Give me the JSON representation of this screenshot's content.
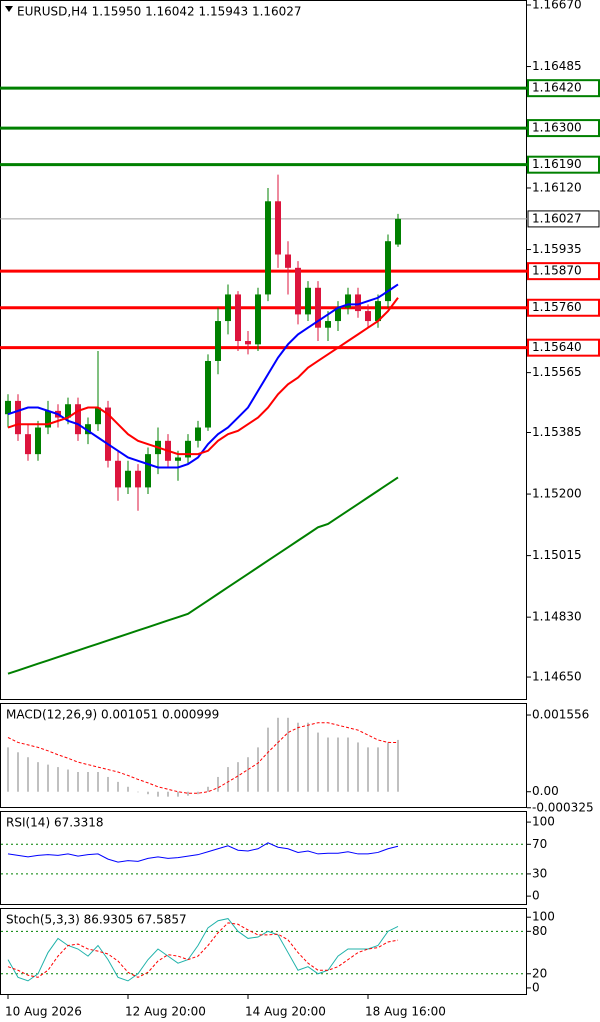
{
  "chart_data": [
    {
      "type": "candlestick",
      "title": "EURUSD,H4  1.15950 1.16042 1.15943 1.16027",
      "categories": [
        "10 Aug 2026",
        null,
        null,
        null,
        null,
        null,
        null,
        null,
        null,
        null,
        null,
        null,
        "12 Aug 20:00",
        null,
        null,
        null,
        null,
        null,
        null,
        null,
        null,
        null,
        null,
        null,
        "14 Aug 20:00",
        null,
        null,
        null,
        null,
        null,
        null,
        null,
        null,
        null,
        null,
        null,
        "18 Aug 16:00",
        null,
        null,
        null
      ],
      "open": [
        1.1544,
        1.1548,
        1.1538,
        1.1532,
        1.154,
        1.1545,
        1.1543,
        1.1547,
        1.1538,
        1.1541,
        1.1546,
        1.153,
        1.1522,
        1.1527,
        1.1522,
        1.1532,
        1.1536,
        1.153,
        1.1531,
        1.1536,
        1.154,
        1.156,
        1.1572,
        1.158,
        1.1566,
        1.1565,
        1.158,
        1.1608,
        1.1592,
        1.1588,
        1.1574,
        1.1582,
        1.157,
        1.1572,
        1.1576,
        1.158,
        1.1575,
        1.1572,
        1.1578,
        1.1595
      ],
      "high": [
        1.155,
        1.155,
        1.1541,
        1.1542,
        1.1548,
        1.1547,
        1.1549,
        1.1549,
        1.1543,
        1.1563,
        1.1548,
        1.1533,
        1.153,
        1.1529,
        1.1534,
        1.154,
        1.1538,
        1.1533,
        1.1538,
        1.1542,
        1.1562,
        1.1576,
        1.1583,
        1.1581,
        1.1569,
        1.1582,
        1.1612,
        1.1616,
        1.1596,
        1.159,
        1.1584,
        1.1584,
        1.1575,
        1.1578,
        1.1582,
        1.1582,
        1.1577,
        1.158,
        1.1598,
        1.16042
      ],
      "low": [
        1.154,
        1.1536,
        1.153,
        1.153,
        1.1538,
        1.154,
        1.1541,
        1.1536,
        1.1535,
        1.1539,
        1.1528,
        1.1518,
        1.152,
        1.1515,
        1.152,
        1.1526,
        1.1528,
        1.1524,
        1.1529,
        1.1534,
        1.1539,
        1.1556,
        1.1568,
        1.1563,
        1.1562,
        1.1563,
        1.1578,
        1.1588,
        1.158,
        1.1571,
        1.1572,
        1.1566,
        1.1566,
        1.1569,
        1.1574,
        1.1573,
        1.157,
        1.157,
        1.1576,
        1.15943
      ],
      "close": [
        1.1548,
        1.1538,
        1.1532,
        1.154,
        1.1545,
        1.1543,
        1.1547,
        1.1538,
        1.1541,
        1.1546,
        1.153,
        1.1522,
        1.1527,
        1.1522,
        1.1532,
        1.1536,
        1.153,
        1.1531,
        1.1536,
        1.154,
        1.156,
        1.1572,
        1.158,
        1.1566,
        1.1565,
        1.158,
        1.1608,
        1.1592,
        1.1588,
        1.1574,
        1.1582,
        1.157,
        1.1572,
        1.1576,
        1.158,
        1.1575,
        1.1572,
        1.1578,
        1.1596,
        1.16027
      ],
      "up_color": "#008000",
      "down_color": "#dc143c",
      "series": [
        {
          "color": "#0000ff",
          "values": [
            1.1544,
            1.1545,
            1.1546,
            1.1546,
            1.1545,
            1.1544,
            1.1542,
            1.1541,
            1.1539,
            1.1537,
            1.1535,
            1.1533,
            1.1531,
            1.153,
            1.1529,
            1.1528,
            1.1528,
            1.1528,
            1.1529,
            1.1531,
            1.1535,
            1.1538,
            1.154,
            1.1543,
            1.1546,
            1.1551,
            1.1556,
            1.1561,
            1.1565,
            1.1568,
            1.157,
            1.1572,
            1.1574,
            1.1576,
            1.1577,
            1.1577,
            1.1578,
            1.1579,
            1.1581,
            1.1583
          ]
        },
        {
          "color": "#ff0000",
          "values": [
            1.154,
            1.1541,
            1.1541,
            1.1541,
            1.1541,
            1.1542,
            1.1543,
            1.1545,
            1.1546,
            1.1546,
            1.1544,
            1.1541,
            1.1538,
            1.1536,
            1.1535,
            1.1534,
            1.1533,
            1.1532,
            1.1532,
            1.1532,
            1.1533,
            1.1536,
            1.1538,
            1.1539,
            1.1541,
            1.1543,
            1.1546,
            1.155,
            1.1553,
            1.1555,
            1.1558,
            1.156,
            1.1562,
            1.1564,
            1.1566,
            1.1568,
            1.157,
            1.1572,
            1.1575,
            1.1579
          ]
        },
        {
          "color": "#008000",
          "values": [
            1.1466,
            1.1467,
            1.1468,
            1.1469,
            1.147,
            1.1471,
            1.1472,
            1.1473,
            1.1474,
            1.1475,
            1.1476,
            1.1477,
            1.1478,
            1.1479,
            1.148,
            1.1481,
            1.1482,
            1.1483,
            1.1484,
            1.1486,
            1.1488,
            1.149,
            1.1492,
            1.1494,
            1.1496,
            1.1498,
            1.15,
            1.1502,
            1.1504,
            1.1506,
            1.1508,
            1.151,
            1.1511,
            1.1513,
            1.1515,
            1.1517,
            1.1519,
            1.1521,
            1.1523,
            1.1525
          ]
        }
      ],
      "levels": [
        {
          "value": 1.1642,
          "label": "1.16420",
          "color": "#008000"
        },
        {
          "value": 1.163,
          "label": "1.16300",
          "color": "#008000"
        },
        {
          "value": 1.1619,
          "label": "1.16190",
          "color": "#008000"
        },
        {
          "value": 1.1587,
          "label": "1.15870",
          "color": "#ff0000"
        },
        {
          "value": 1.1576,
          "label": "1.15760",
          "color": "#ff0000"
        },
        {
          "value": 1.1564,
          "label": "1.15640",
          "color": "#ff0000"
        }
      ],
      "last_price": {
        "value": 1.16027,
        "label": "1.16027",
        "color": "#a0a0a0"
      },
      "ylim": [
        1.14581,
        1.16685
      ],
      "yticks": [
        {
          "value": 1.1667,
          "label": "1.16670"
        },
        {
          "value": 1.16485,
          "label": "1.16485"
        },
        {
          "value": 1.1612,
          "label": "1.16120"
        },
        {
          "value": 1.15935,
          "label": "1.15935"
        },
        {
          "value": 1.15565,
          "label": "1.15565"
        },
        {
          "value": 1.15385,
          "label": "1.15385"
        },
        {
          "value": 1.152,
          "label": "1.15200"
        },
        {
          "value": 1.15015,
          "label": "1.15015"
        },
        {
          "value": 1.1483,
          "label": "1.14830"
        },
        {
          "value": 1.1465,
          "label": "1.14650"
        }
      ]
    },
    {
      "type": "bar",
      "title": "MACD(12,26,9) 0.001051 0.000999",
      "values": [
        0.0009,
        0.0008,
        0.0007,
        0.0006,
        0.00055,
        0.0005,
        0.00045,
        0.0004,
        0.0004,
        0.0004,
        0.0003,
        0.0002,
        0.0001,
        0.0,
        -5e-05,
        -0.0001,
        -0.0001,
        -0.0001,
        -8e-05,
        -5e-05,
        0.0001,
        0.0003,
        0.0005,
        0.0006,
        0.0007,
        0.0009,
        0.0013,
        0.0015,
        0.0015,
        0.0014,
        0.0014,
        0.0012,
        0.0011,
        0.0011,
        0.0011,
        0.001,
        0.0009,
        0.0009,
        0.001,
        0.001051
      ],
      "color": "#c0c0c0",
      "series": [
        {
          "color": "#ff0000",
          "dashed": true,
          "values": [
            0.0011,
            0.001,
            0.00095,
            0.0009,
            0.00083,
            0.00075,
            0.00068,
            0.0006,
            0.00055,
            0.0005,
            0.00045,
            0.0004,
            0.00033,
            0.00025,
            0.00018,
            0.0001,
            5e-05,
            0.0,
            -3e-05,
            -3e-05,
            0.0,
            8e-05,
            0.0002,
            0.00032,
            0.00045,
            0.00058,
            0.0008,
            0.001,
            0.0012,
            0.0013,
            0.00135,
            0.0014,
            0.0014,
            0.00135,
            0.0013,
            0.00125,
            0.00115,
            0.00105,
            0.001,
            0.000999
          ]
        }
      ],
      "ylim": [
        -0.00033,
        0.0018
      ],
      "yticks": [
        0.001556,
        {
          "value": 0,
          "label": "0.00"
        },
        -0.000325
      ]
    },
    {
      "type": "line",
      "title": "RSI(14) 67.3318",
      "series": [
        {
          "color": "#0000ff",
          "values": [
            57,
            55,
            53,
            55,
            56,
            55,
            57,
            54,
            56,
            57,
            50,
            46,
            48,
            47,
            51,
            53,
            51,
            52,
            54,
            56,
            60,
            64,
            68,
            62,
            61,
            64,
            72,
            66,
            64,
            59,
            61,
            57,
            58,
            58,
            60,
            57,
            57,
            59,
            64,
            67.3318
          ]
        }
      ],
      "levels": [
        70,
        30
      ],
      "ylim": [
        -12,
        115
      ],
      "yticks": [
        100,
        70,
        30,
        0
      ]
    },
    {
      "type": "line",
      "title": "Stoch(5,3,3) 86.9305 67.5857",
      "series": [
        {
          "color": "#20b2aa",
          "values": [
            40,
            15,
            10,
            20,
            50,
            70,
            60,
            55,
            45,
            60,
            40,
            15,
            10,
            20,
            40,
            55,
            45,
            35,
            40,
            60,
            85,
            95,
            98,
            80,
            70,
            72,
            80,
            75,
            50,
            25,
            30,
            20,
            25,
            45,
            55,
            55,
            55,
            60,
            80,
            86.9305
          ]
        },
        {
          "color": "#ff0000",
          "dashed": true,
          "values": [
            30,
            25,
            18,
            15,
            25,
            45,
            60,
            62,
            55,
            52,
            48,
            38,
            22,
            15,
            22,
            38,
            47,
            45,
            40,
            45,
            60,
            78,
            92,
            90,
            82,
            75,
            75,
            76,
            68,
            50,
            35,
            25,
            25,
            30,
            40,
            50,
            55,
            57,
            65,
            67.5857
          ]
        }
      ],
      "levels": [
        80,
        20
      ],
      "ylim": [
        -10,
        113
      ],
      "yticks": [
        100,
        80,
        20,
        0
      ]
    }
  ]
}
